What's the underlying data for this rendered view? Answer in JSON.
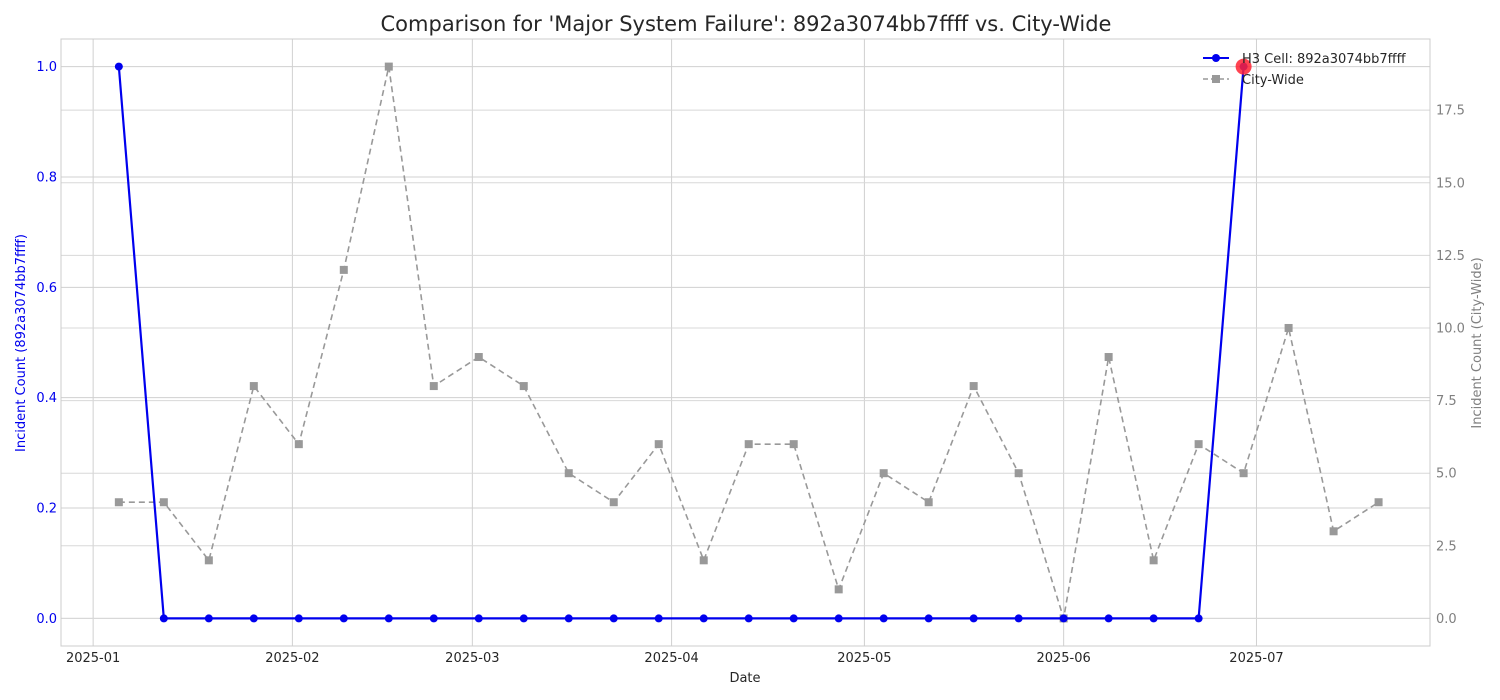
{
  "chart_data": {
    "type": "line",
    "title": "Comparison for 'Major System Failure': 892a3074bb7ffff vs. City-Wide",
    "xlabel": "Date",
    "ylabel_left": "Incident Count (892a3074bb7ffff)",
    "ylabel_right": "Incident Count (City-Wide)",
    "xlim": [
      "2024-12-27",
      "2025-07-28"
    ],
    "ylim_left": [
      -0.05,
      1.05
    ],
    "ylim_right": [
      -0.95,
      19.95
    ],
    "grid": true,
    "legend_position": "top-right",
    "x_ticks": [
      "2025-01",
      "2025-02",
      "2025-03",
      "2025-04",
      "2025-05",
      "2025-06",
      "2025-07"
    ],
    "y_ticks_left": [
      "0.0",
      "0.2",
      "0.4",
      "0.6",
      "0.8",
      "1.0"
    ],
    "y_ticks_right": [
      "0.0",
      "2.5",
      "5.0",
      "7.5",
      "10.0",
      "12.5",
      "15.0",
      "17.5"
    ],
    "series": [
      {
        "name": "H3 Cell: 892a3074bb7ffff",
        "axis": "left",
        "color": "#0000ee",
        "line_style": "solid",
        "marker": "circle",
        "x": [
          "2025-01-05",
          "2025-01-12",
          "2025-01-19",
          "2025-01-26",
          "2025-02-02",
          "2025-02-09",
          "2025-02-16",
          "2025-02-23",
          "2025-03-02",
          "2025-03-09",
          "2025-03-16",
          "2025-03-23",
          "2025-03-30",
          "2025-04-06",
          "2025-04-13",
          "2025-04-20",
          "2025-04-27",
          "2025-05-04",
          "2025-05-11",
          "2025-05-18",
          "2025-05-25",
          "2025-06-01",
          "2025-06-08",
          "2025-06-15",
          "2025-06-22",
          "2025-06-29"
        ],
        "values": [
          1,
          0,
          0,
          0,
          0,
          0,
          0,
          0,
          0,
          0,
          0,
          0,
          0,
          0,
          0,
          0,
          0,
          0,
          0,
          0,
          0,
          0,
          0,
          0,
          0,
          1
        ]
      },
      {
        "name": "City-Wide",
        "axis": "right",
        "color": "#999999",
        "line_style": "dashed",
        "marker": "square",
        "x": [
          "2025-01-05",
          "2025-01-12",
          "2025-01-19",
          "2025-01-26",
          "2025-02-02",
          "2025-02-09",
          "2025-02-16",
          "2025-02-23",
          "2025-03-02",
          "2025-03-09",
          "2025-03-16",
          "2025-03-23",
          "2025-03-30",
          "2025-04-06",
          "2025-04-13",
          "2025-04-20",
          "2025-04-27",
          "2025-05-04",
          "2025-05-11",
          "2025-05-18",
          "2025-05-25",
          "2025-06-01",
          "2025-06-08",
          "2025-06-15",
          "2025-06-22",
          "2025-06-29",
          "2025-07-06",
          "2025-07-13",
          "2025-07-20"
        ],
        "values": [
          4,
          4,
          2,
          8,
          6,
          12,
          19,
          8,
          9,
          8,
          5,
          4,
          6,
          2,
          6,
          6,
          1,
          5,
          4,
          8,
          5,
          0,
          9,
          2,
          6,
          5,
          10,
          3,
          4
        ]
      }
    ],
    "highlight": {
      "x": "2025-06-29",
      "value": 1,
      "axis": "left",
      "color": "#ff2233"
    }
  }
}
